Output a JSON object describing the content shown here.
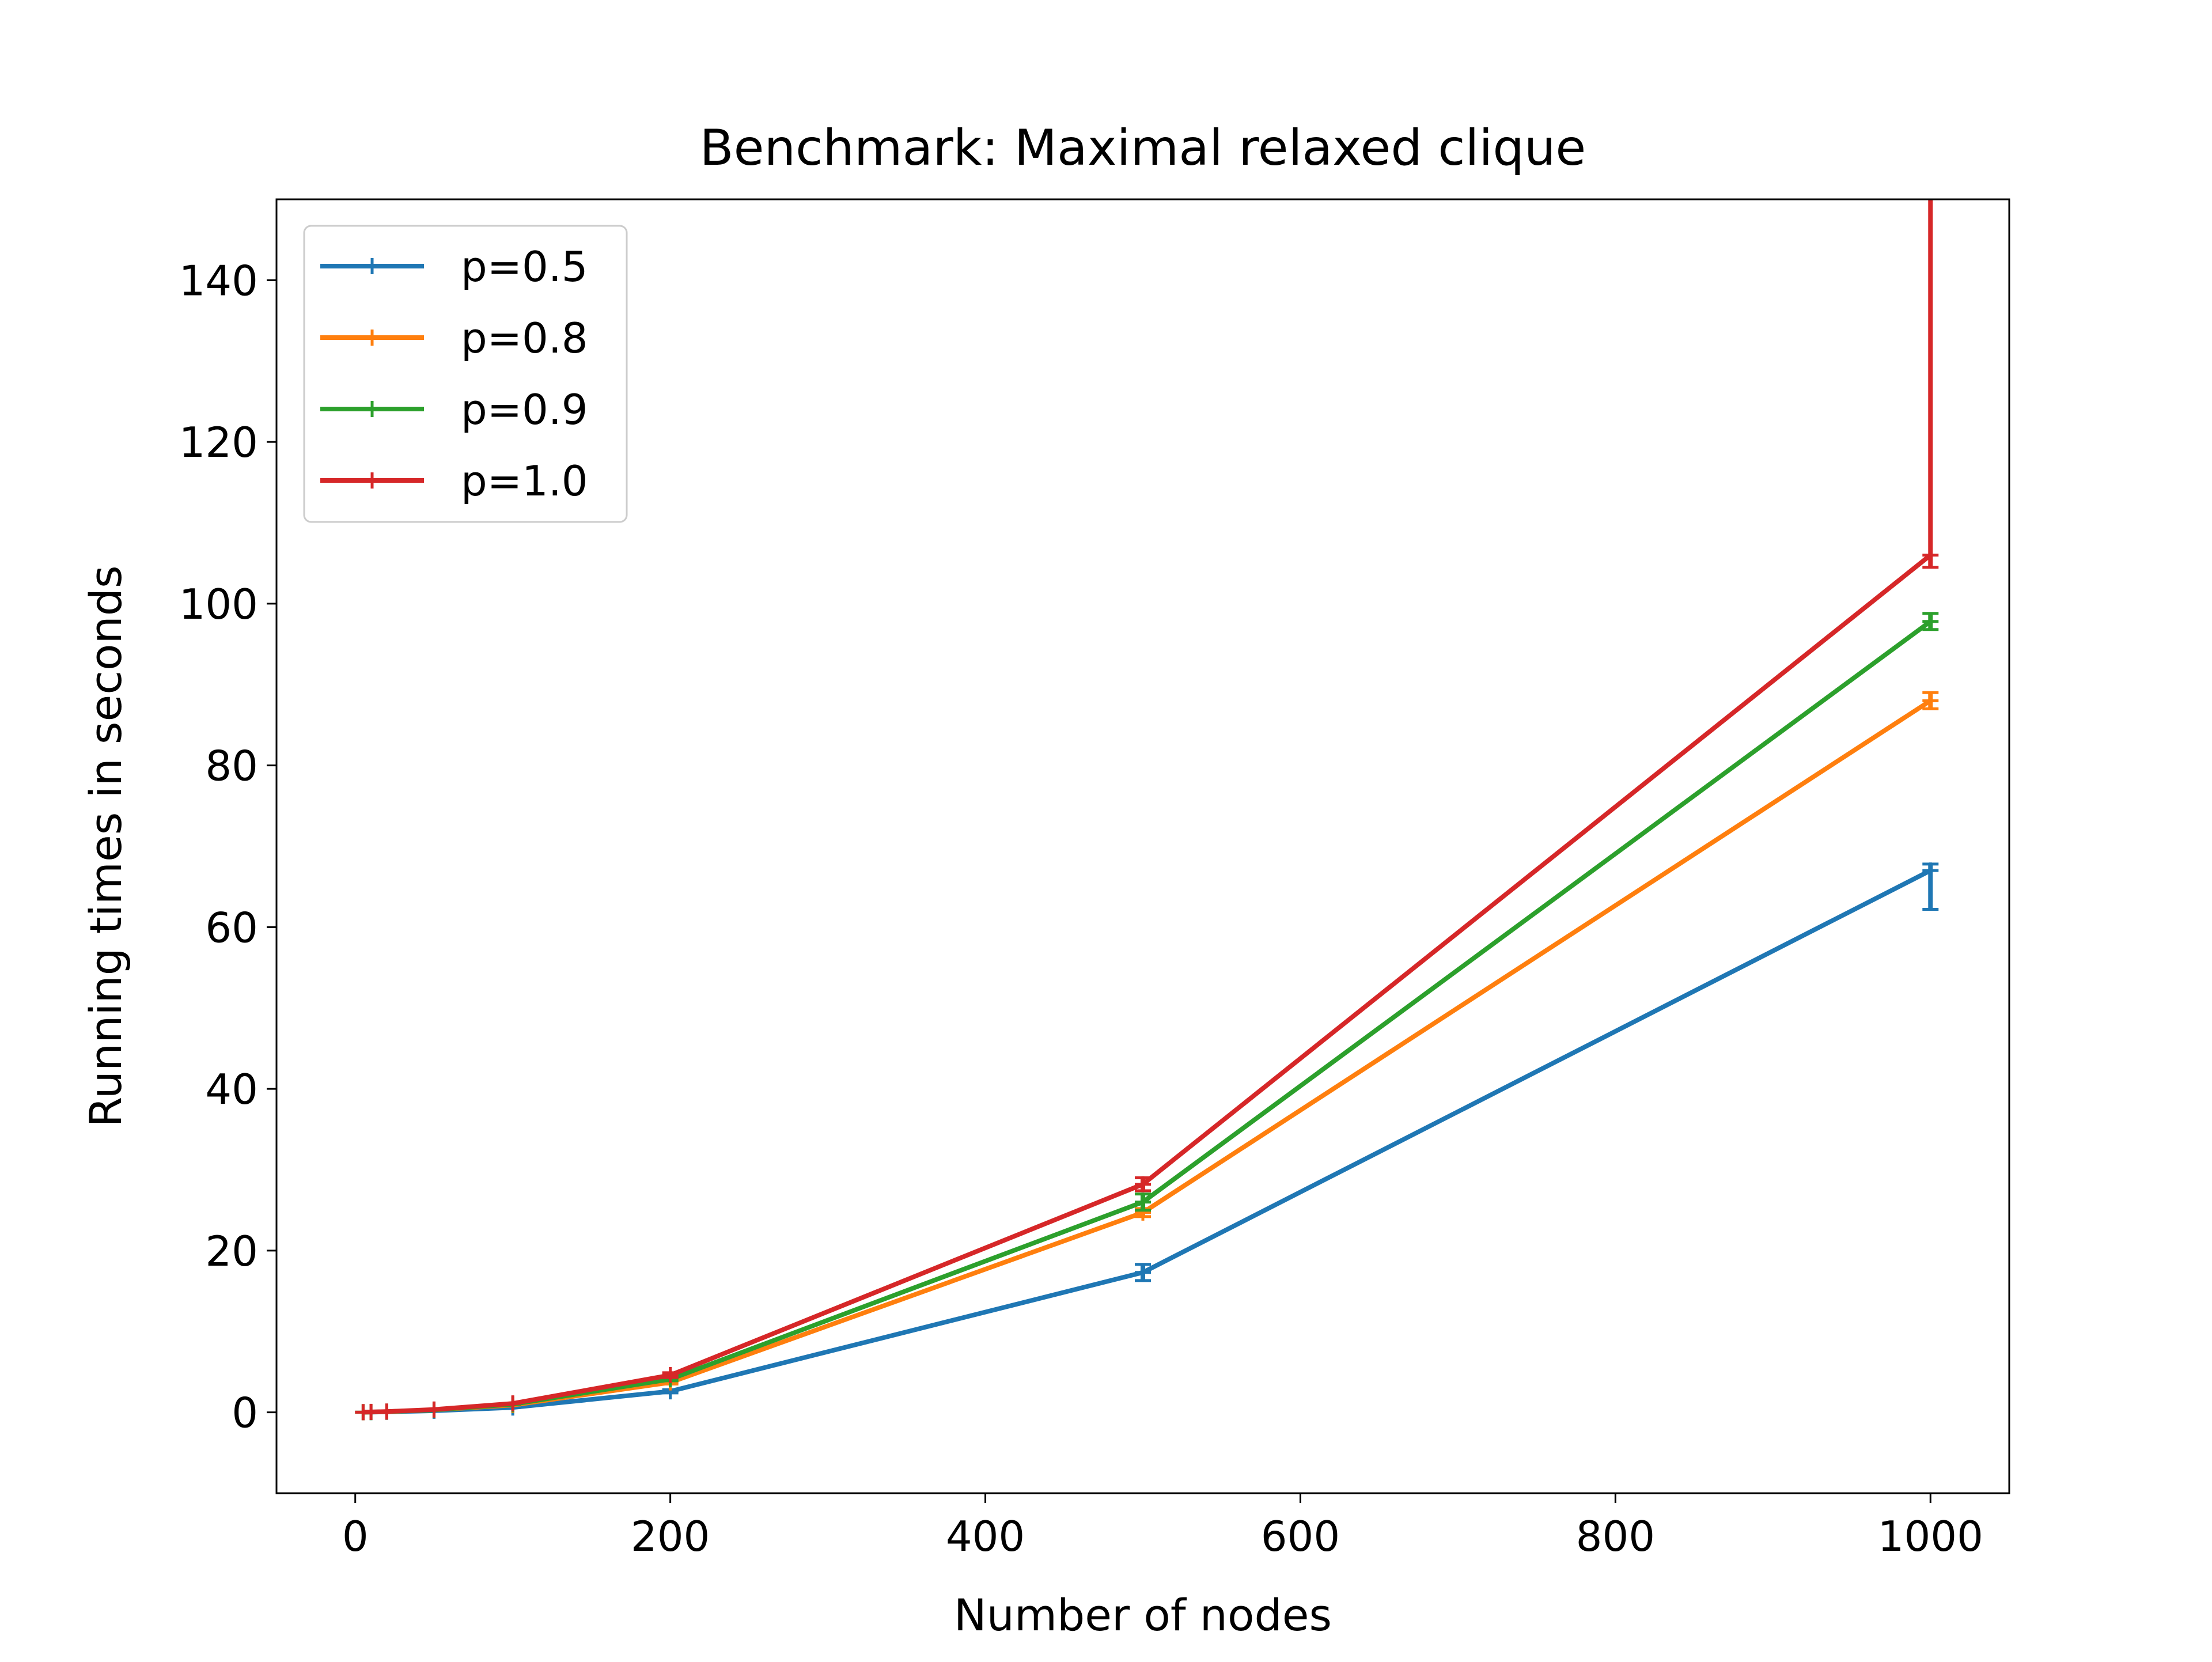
{
  "chart_data": {
    "type": "line",
    "title": "Benchmark: Maximal relaxed clique",
    "xlabel": "Number of nodes",
    "ylabel": "Running times in seconds",
    "xlim": [
      -50,
      1050
    ],
    "ylim": [
      -10,
      150
    ],
    "xticks": [
      0,
      200,
      400,
      600,
      800,
      1000
    ],
    "yticks": [
      0,
      20,
      40,
      60,
      80,
      100,
      120,
      140
    ],
    "legend_position": "top-left",
    "marker": "+",
    "error_bars": true,
    "x": [
      5,
      10,
      20,
      50,
      100,
      200,
      500,
      1000
    ],
    "series": [
      {
        "name": "p=0.5",
        "color": "#1f77b4",
        "values": [
          0.02,
          0.03,
          0.06,
          0.2,
          0.6,
          2.6,
          17.3,
          67.0
        ],
        "err_low": [
          0,
          0,
          0,
          0,
          0,
          0.2,
          1.0,
          4.8
        ],
        "err_high": [
          0,
          0,
          0,
          0,
          0,
          0.2,
          1.0,
          0.8
        ]
      },
      {
        "name": "p=0.8",
        "color": "#ff7f0e",
        "values": [
          0.02,
          0.04,
          0.08,
          0.3,
          0.9,
          3.7,
          24.7,
          88.0
        ],
        "err_low": [
          0,
          0,
          0,
          0,
          0,
          0.2,
          0.5,
          1.0
        ],
        "err_high": [
          0,
          0,
          0,
          0,
          0,
          0.2,
          0.5,
          1.0
        ]
      },
      {
        "name": "p=0.9",
        "color": "#2ca02c",
        "values": [
          0.02,
          0.04,
          0.09,
          0.3,
          1.0,
          4.1,
          26.0,
          97.8
        ],
        "err_low": [
          0,
          0,
          0,
          0,
          0,
          0.2,
          1.0,
          1.0
        ],
        "err_high": [
          0,
          0,
          0,
          0,
          0,
          0.2,
          1.0,
          1.0
        ]
      },
      {
        "name": "p=1.0",
        "color": "#d62728",
        "values": [
          0.02,
          0.05,
          0.1,
          0.35,
          1.1,
          4.6,
          28.2,
          106.0
        ],
        "err_low": [
          0,
          0,
          0,
          0,
          0,
          0.3,
          0.8,
          1.5
        ],
        "err_high": [
          0,
          0,
          0,
          0,
          0,
          0.3,
          0.8,
          60.0
        ]
      }
    ]
  }
}
